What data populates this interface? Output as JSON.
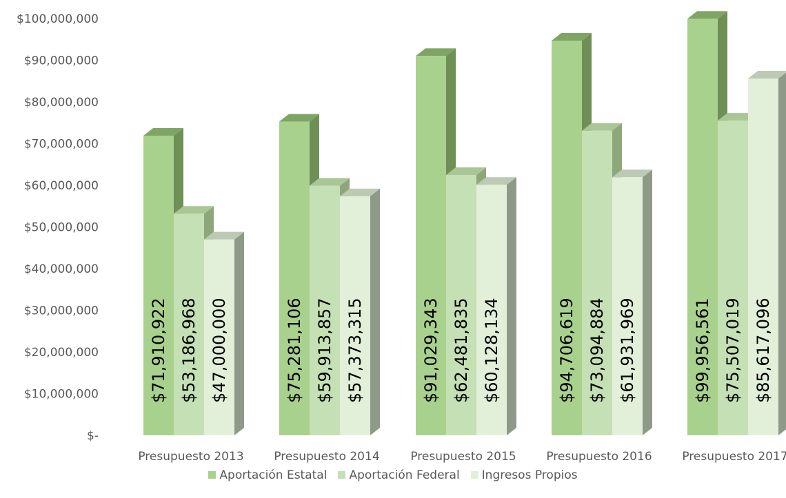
{
  "chart_data": {
    "type": "bar",
    "categories": [
      "Presupuesto 2013",
      "Presupuesto 2014",
      "Presupuesto 2015",
      "Presupuesto 2016",
      "Presupuesto 2017"
    ],
    "series": [
      {
        "name": "Aportación Estatal",
        "color": "#a9d18e",
        "values": [
          71910922,
          75281106,
          91029343,
          94706619,
          99956561
        ],
        "labels": [
          "$71,910,922",
          "$75,281,106",
          "$91,029,343",
          "$94,706,619",
          "$99,956,561"
        ]
      },
      {
        "name": "Aportación Federal",
        "color": "#c5e0b4",
        "values": [
          53186968,
          59913857,
          62481835,
          73094884,
          75507019
        ],
        "labels": [
          "$53,186,968",
          "$59,913,857",
          "$62,481,835",
          "$73,094,884",
          "$75,507,019"
        ]
      },
      {
        "name": "Ingresos Propios",
        "color": "#e2f0d9",
        "values": [
          47000000,
          57373315,
          60128134,
          61931969,
          85617096
        ],
        "labels": [
          "$47,000,000",
          "$57,373,315",
          "$60,128,134",
          "$61,931,969",
          "$85,617,096"
        ]
      }
    ],
    "ylim": [
      0,
      100000000
    ],
    "yticks": [
      0,
      10000000,
      20000000,
      30000000,
      40000000,
      50000000,
      60000000,
      70000000,
      80000000,
      90000000,
      100000000
    ],
    "ytick_labels": [
      "$-",
      "$10,000,000",
      "$20,000,000",
      "$30,000,000",
      "$40,000,000",
      "$50,000,000",
      "$60,000,000",
      "$70,000,000",
      "$80,000,000",
      "$90,000,000",
      "$100,000,000"
    ],
    "xlabel": "",
    "ylabel": "",
    "title": "",
    "style": "3d-clustered-column",
    "grid": false,
    "legend_position": "bottom"
  }
}
